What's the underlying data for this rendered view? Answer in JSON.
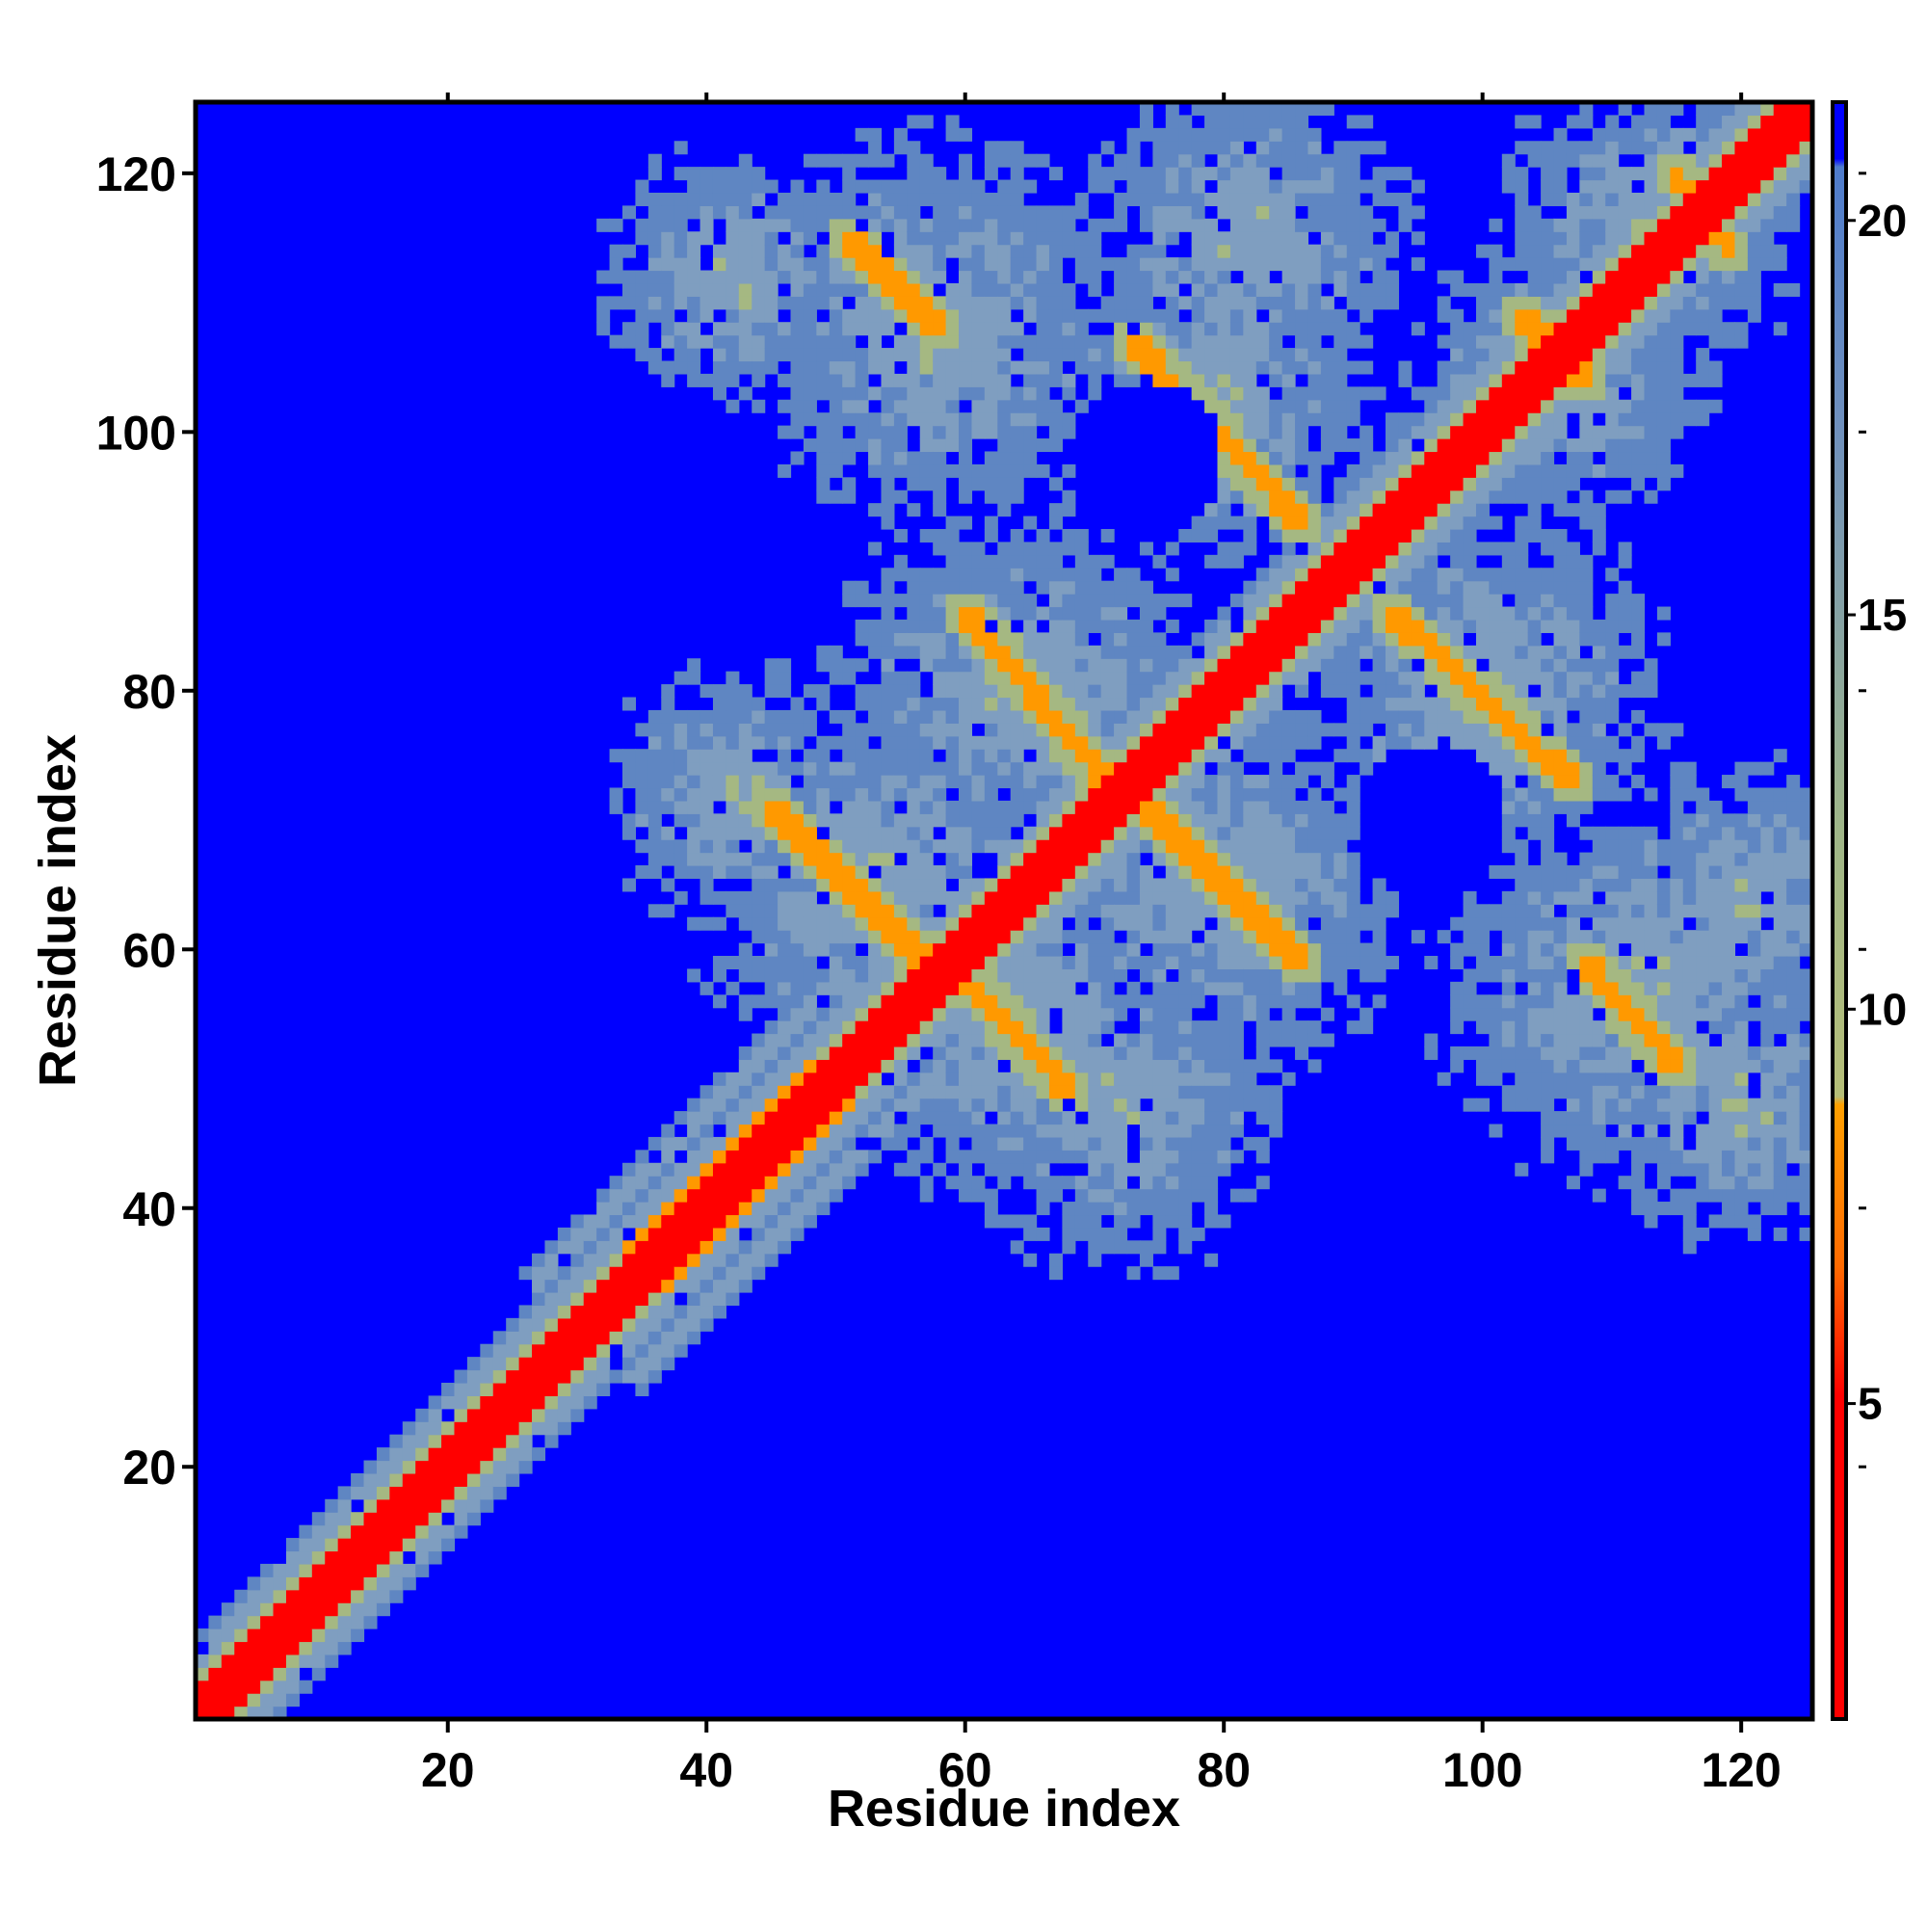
{
  "chart_data": {
    "type": "heatmap",
    "title": "",
    "xlabel": "Residue index",
    "ylabel": "Residue index",
    "n_residues": 125,
    "xlim": [
      1,
      125
    ],
    "ylim": [
      1,
      125
    ],
    "x_ticks": [
      20,
      40,
      60,
      80,
      100,
      120
    ],
    "y_ticks": [
      20,
      40,
      60,
      80,
      100,
      120
    ],
    "colorbar": {
      "range": [
        1,
        21.5
      ],
      "ticks": [
        5,
        10,
        15,
        20
      ],
      "placement": "right"
    },
    "colors": {
      "contact": "#ff0000",
      "near": "#ff9900",
      "mid": "#a5b882",
      "far": "#5f86c2",
      "background": "#0000ff"
    },
    "features": {
      "diagonal": "main diagonal distance ~1-4",
      "helix_helix_contacts": [
        {
          "x": [
            51,
            58
          ],
          "y": [
            115,
            108
          ]
        },
        {
          "x": [
            73,
            86
          ],
          "y": [
            107,
            93
          ]
        },
        {
          "x": [
            60,
            71
          ],
          "y": [
            86,
            73
          ]
        },
        {
          "x": [
            93,
            107
          ],
          "y": [
            86,
            73
          ]
        },
        {
          "x": [
            45,
            57
          ],
          "y": [
            71,
            59
          ]
        },
        {
          "x": [
            74,
            86
          ],
          "y": [
            71,
            59
          ]
        },
        {
          "x": [
            59,
            68
          ],
          "y": [
            59,
            49
          ]
        },
        {
          "x": [
            108,
            115
          ],
          "y": [
            59,
            51
          ]
        },
        {
          "x": [
            103,
            108
          ],
          "y": [
            109,
            104
          ]
        },
        {
          "x": [
            115,
            119
          ],
          "y": [
            120,
            114
          ]
        }
      ]
    }
  }
}
